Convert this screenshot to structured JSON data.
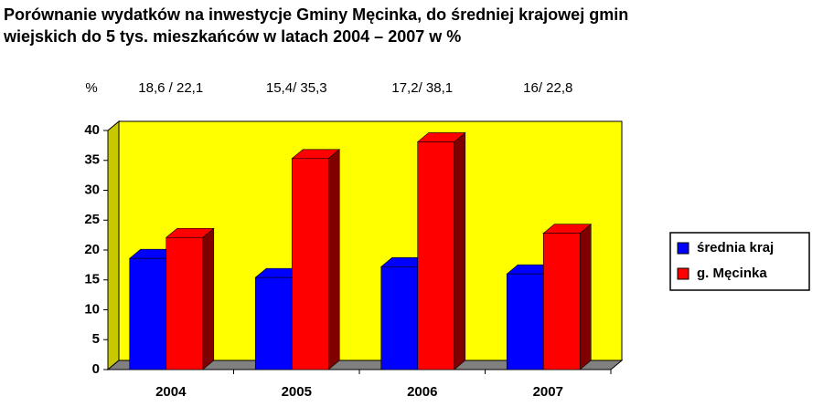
{
  "chart_data": {
    "type": "bar3d",
    "title": [
      "Porównanie wydatków na inwestycje Gminy Męcinka, do średniej krajowej   gmin",
      "wiejskich do 5 tys. mieszkańców w latach 2004 – 2007 w %"
    ],
    "y_label": "%",
    "annotations": [
      "18,6 /  22,1",
      "15,4/ 35,3",
      "17,2/ 38,1",
      "16/ 22,8"
    ],
    "categories": [
      "2004",
      "2005",
      "2006",
      "2007"
    ],
    "series": [
      {
        "name": "średnia kraj",
        "color": "#0000ff",
        "values": [
          18.6,
          15.4,
          17.2,
          16
        ]
      },
      {
        "name": "g. Męcinka",
        "color": "#ff0000",
        "values": [
          22.1,
          35.3,
          38.1,
          22.8
        ]
      }
    ],
    "ylim": [
      0,
      40
    ],
    "yticks": [
      0,
      5,
      10,
      15,
      20,
      25,
      30,
      35,
      40
    ],
    "background": "#ffff00",
    "legend": "right"
  }
}
